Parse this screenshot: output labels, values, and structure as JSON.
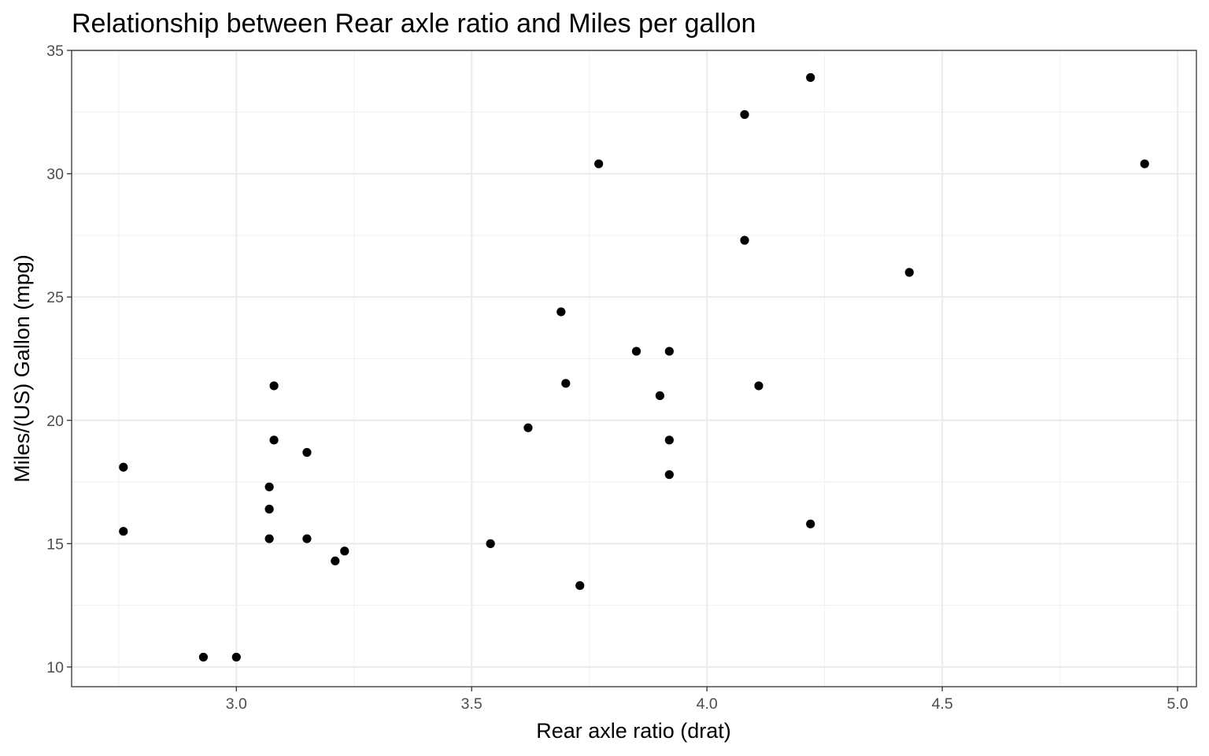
{
  "chart_data": {
    "type": "scatter",
    "title": "Relationship between Rear axle ratio and Miles per gallon",
    "xlabel": "Rear axle ratio (drat)",
    "ylabel": "Miles/(US) Gallon (mpg)",
    "xlim": [
      2.65,
      5.04
    ],
    "ylim": [
      9.2,
      35.0
    ],
    "x_ticks": [
      3.0,
      3.5,
      4.0,
      4.5,
      5.0
    ],
    "x_tick_labels": [
      "3.0",
      "3.5",
      "4.0",
      "4.5",
      "5.0"
    ],
    "y_ticks": [
      10,
      15,
      20,
      25,
      30,
      35
    ],
    "y_tick_labels": [
      "10",
      "15",
      "20",
      "25",
      "30",
      "35"
    ],
    "grid": true,
    "legend": "none",
    "point_color": "#000000",
    "grid_color": "#ebebeb",
    "points": [
      {
        "x": 2.76,
        "y": 18.1
      },
      {
        "x": 2.76,
        "y": 15.5
      },
      {
        "x": 2.93,
        "y": 10.4
      },
      {
        "x": 3.0,
        "y": 10.4
      },
      {
        "x": 3.07,
        "y": 17.3
      },
      {
        "x": 3.07,
        "y": 16.4
      },
      {
        "x": 3.07,
        "y": 15.2
      },
      {
        "x": 3.08,
        "y": 21.4
      },
      {
        "x": 3.08,
        "y": 19.2
      },
      {
        "x": 3.15,
        "y": 18.7
      },
      {
        "x": 3.15,
        "y": 15.2
      },
      {
        "x": 3.21,
        "y": 14.3
      },
      {
        "x": 3.23,
        "y": 14.7
      },
      {
        "x": 3.54,
        "y": 15.0
      },
      {
        "x": 3.62,
        "y": 19.7
      },
      {
        "x": 3.69,
        "y": 24.4
      },
      {
        "x": 3.7,
        "y": 21.5
      },
      {
        "x": 3.73,
        "y": 13.3
      },
      {
        "x": 3.77,
        "y": 30.4
      },
      {
        "x": 3.85,
        "y": 22.8
      },
      {
        "x": 3.9,
        "y": 21.0
      },
      {
        "x": 3.92,
        "y": 22.8
      },
      {
        "x": 3.92,
        "y": 19.2
      },
      {
        "x": 3.92,
        "y": 17.8
      },
      {
        "x": 4.08,
        "y": 32.4
      },
      {
        "x": 4.08,
        "y": 27.3
      },
      {
        "x": 4.11,
        "y": 21.4
      },
      {
        "x": 4.22,
        "y": 33.9
      },
      {
        "x": 4.22,
        "y": 15.8
      },
      {
        "x": 4.43,
        "y": 26.0
      },
      {
        "x": 4.93,
        "y": 30.4
      }
    ]
  }
}
